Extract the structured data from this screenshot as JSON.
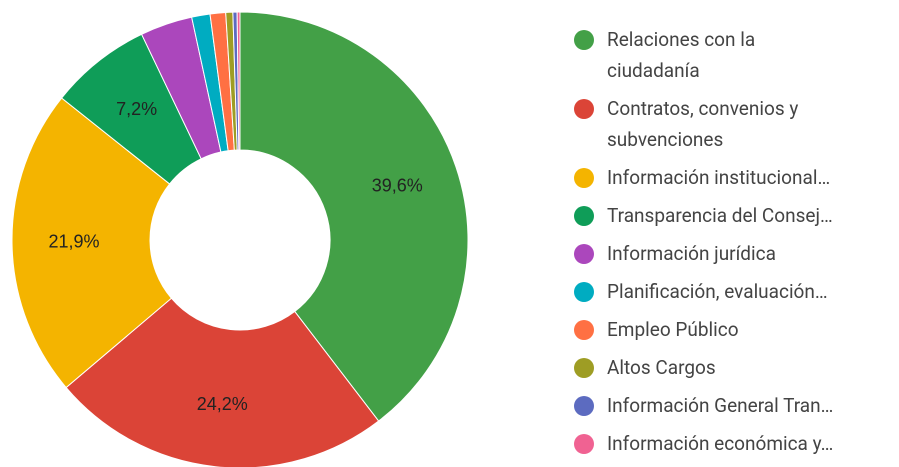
{
  "chart_data": {
    "type": "donut",
    "categories": [
      "Relaciones con la ciudadanía",
      "Contratos, convenios y subvenciones",
      "Información institucional…",
      "Transparencia del Consej…",
      "Información jurídica",
      "Planificación, evaluación…",
      "Empleo Público",
      "Altos Cargos",
      "Información General Tran…",
      "Información económica y…"
    ],
    "values": [
      39.6,
      24.2,
      21.9,
      7.2,
      3.7,
      1.3,
      1.1,
      0.5,
      0.3,
      0.2
    ],
    "value_labels": [
      "39,6%",
      "24,2%",
      "21,9%",
      "7,2%",
      null,
      null,
      null,
      null,
      null,
      null
    ],
    "colors": [
      "#43a047",
      "#db4437",
      "#f4b400",
      "#0f9d58",
      "#ab47bc",
      "#00acc1",
      "#ff7043",
      "#9e9d24",
      "#5c6bc0",
      "#f06292"
    ],
    "legend": "right"
  }
}
